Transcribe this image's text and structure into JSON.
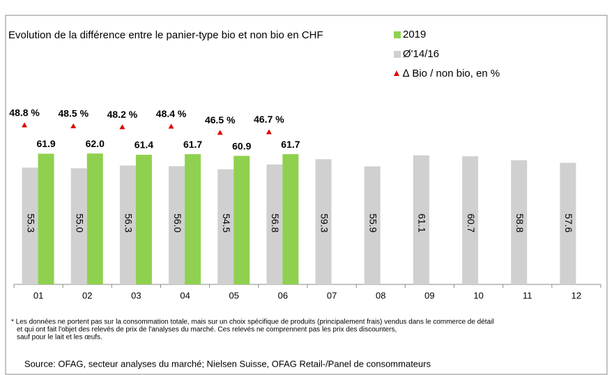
{
  "chart_data": {
    "type": "bar",
    "title": "Evolution de la différence entre le panier-type bio et non bio en CHF",
    "categories": [
      "01",
      "02",
      "03",
      "04",
      "05",
      "06",
      "07",
      "08",
      "09",
      "10",
      "11",
      "12"
    ],
    "series": [
      {
        "name": "Ø'14/16",
        "color": "#d0d0d0",
        "values": [
          55.3,
          55.0,
          56.3,
          56.0,
          54.5,
          56.8,
          59.3,
          55.9,
          61.1,
          60.7,
          58.8,
          57.6
        ],
        "value_labels": [
          "55.3",
          "55.0",
          "56.3",
          "56.0",
          "54.5",
          "56.8",
          "59.3",
          "55.9",
          "61.1",
          "60.7",
          "58.8",
          "57.6"
        ]
      },
      {
        "name": "2019",
        "color": "#8fd14f",
        "values": [
          61.9,
          62.0,
          61.4,
          61.7,
          60.9,
          61.7,
          null,
          null,
          null,
          null,
          null,
          null
        ],
        "value_labels": [
          "61.9",
          "62.0",
          "61.4",
          "61.7",
          "60.9",
          "61.7",
          null,
          null,
          null,
          null,
          null,
          null
        ]
      },
      {
        "name": "∆ Bio / non bio, en %",
        "color": "#e00000",
        "axis": "y2",
        "values": [
          48.8,
          48.5,
          48.2,
          48.4,
          46.5,
          46.7,
          null,
          null,
          null,
          null,
          null,
          null
        ],
        "value_labels": [
          "48.8 %",
          "48.5 %",
          "48.2 %",
          "48.4 %",
          "46.5 %",
          "46.7 %",
          null,
          null,
          null,
          null,
          null,
          null
        ]
      }
    ],
    "ylim": [
      0,
      70
    ],
    "y2lim": [
      0,
      50
    ],
    "notes": [
      "* Les données ne portent pas sur la consommation totale, mais sur un choix spécifique de produits (principalement frais) vendus dans le commerce de détail",
      "et qui ont fait l'objet des relevés de prix de l'analyses du marché. Ces relevés ne comprennent pas les prix des discounters,",
      "sauf pour le lait et les œufs."
    ],
    "source": "Source: OFAG, secteur analyses du marché; Nielsen Suisse, OFAG Retail-/Panel de consommateurs"
  }
}
